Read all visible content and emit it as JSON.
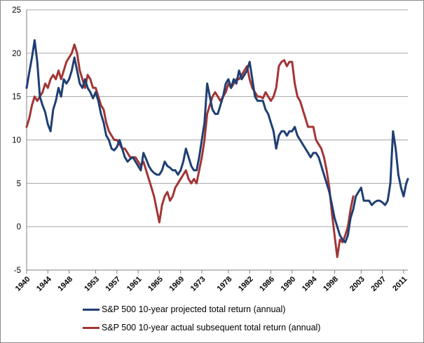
{
  "chart_data": {
    "type": "line",
    "title": "",
    "xlabel": "",
    "ylabel": "",
    "x_range": [
      1940,
      2011.8
    ],
    "ylim": [
      -5,
      25
    ],
    "y_ticks": [
      -5,
      0,
      5,
      10,
      15,
      20,
      25
    ],
    "x_tick_labels": [
      "1940",
      "1944",
      "1948",
      "1953",
      "1957",
      "1961",
      "1965",
      "1969",
      "1973",
      "1978",
      "1982",
      "1986",
      "1990",
      "1994",
      "1998",
      "2003",
      "2007",
      "2011"
    ],
    "x_tick_values": [
      1940,
      1944,
      1948,
      1953,
      1957,
      1961,
      1965,
      1969,
      1973,
      1978,
      1982,
      1986,
      1990,
      1994,
      1998,
      2003,
      2007,
      2011
    ],
    "grid": "horizontal",
    "legend_position": "bottom",
    "series": [
      {
        "name": "S&P 500 10-year projected total return (annual)",
        "color": "#1f3f73",
        "points": [
          [
            1940.0,
            16.0
          ],
          [
            1940.5,
            17.8
          ],
          [
            1941.0,
            19.5
          ],
          [
            1941.5,
            21.5
          ],
          [
            1942.0,
            19.0
          ],
          [
            1942.5,
            15.0
          ],
          [
            1943.0,
            14.0
          ],
          [
            1943.5,
            13.2
          ],
          [
            1944.0,
            11.8
          ],
          [
            1944.5,
            11.0
          ],
          [
            1945.0,
            13.5
          ],
          [
            1945.5,
            14.5
          ],
          [
            1946.0,
            16.0
          ],
          [
            1946.5,
            15.0
          ],
          [
            1947.0,
            17.0
          ],
          [
            1947.5,
            16.5
          ],
          [
            1948.0,
            17.0
          ],
          [
            1948.5,
            18.0
          ],
          [
            1949.0,
            19.5
          ],
          [
            1949.5,
            18.0
          ],
          [
            1950.0,
            16.5
          ],
          [
            1950.5,
            16.0
          ],
          [
            1951.0,
            17.0
          ],
          [
            1951.5,
            16.0
          ],
          [
            1952.0,
            15.5
          ],
          [
            1952.5,
            14.8
          ],
          [
            1953.0,
            15.5
          ],
          [
            1953.5,
            14.5
          ],
          [
            1954.0,
            13.0
          ],
          [
            1954.5,
            12.0
          ],
          [
            1955.0,
            10.5
          ],
          [
            1955.5,
            10.0
          ],
          [
            1956.0,
            9.0
          ],
          [
            1956.5,
            8.8
          ],
          [
            1957.0,
            9.2
          ],
          [
            1957.5,
            10.0
          ],
          [
            1958.0,
            9.0
          ],
          [
            1958.5,
            8.0
          ],
          [
            1959.0,
            7.5
          ],
          [
            1959.5,
            7.8
          ],
          [
            1960.0,
            8.0
          ],
          [
            1960.5,
            7.5
          ],
          [
            1961.0,
            7.0
          ],
          [
            1961.5,
            6.5
          ],
          [
            1962.0,
            8.5
          ],
          [
            1962.5,
            7.8
          ],
          [
            1963.0,
            7.0
          ],
          [
            1963.5,
            6.5
          ],
          [
            1964.0,
            6.2
          ],
          [
            1964.5,
            6.0
          ],
          [
            1965.0,
            6.0
          ],
          [
            1965.5,
            6.5
          ],
          [
            1966.0,
            7.5
          ],
          [
            1966.5,
            7.0
          ],
          [
            1967.0,
            6.8
          ],
          [
            1967.5,
            6.5
          ],
          [
            1968.0,
            6.5
          ],
          [
            1968.5,
            6.0
          ],
          [
            1969.0,
            6.5
          ],
          [
            1969.5,
            7.5
          ],
          [
            1970.0,
            9.0
          ],
          [
            1970.5,
            8.0
          ],
          [
            1971.0,
            7.0
          ],
          [
            1971.5,
            6.5
          ],
          [
            1972.0,
            6.5
          ],
          [
            1972.5,
            8.0
          ],
          [
            1973.0,
            10.0
          ],
          [
            1973.5,
            12.0
          ],
          [
            1974.0,
            16.5
          ],
          [
            1974.5,
            15.0
          ],
          [
            1975.0,
            13.5
          ],
          [
            1975.5,
            13.0
          ],
          [
            1976.0,
            13.0
          ],
          [
            1976.5,
            14.0
          ],
          [
            1977.0,
            15.0
          ],
          [
            1977.5,
            16.5
          ],
          [
            1978.0,
            17.0
          ],
          [
            1978.5,
            16.0
          ],
          [
            1979.0,
            17.0
          ],
          [
            1979.5,
            16.5
          ],
          [
            1980.0,
            18.0
          ],
          [
            1980.5,
            17.0
          ],
          [
            1981.0,
            17.5
          ],
          [
            1981.5,
            18.0
          ],
          [
            1982.0,
            19.0
          ],
          [
            1982.5,
            17.0
          ],
          [
            1983.0,
            15.0
          ],
          [
            1983.5,
            14.5
          ],
          [
            1984.0,
            14.5
          ],
          [
            1984.5,
            14.5
          ],
          [
            1985.0,
            13.5
          ],
          [
            1985.5,
            13.0
          ],
          [
            1986.0,
            12.0
          ],
          [
            1986.5,
            11.0
          ],
          [
            1987.0,
            9.0
          ],
          [
            1987.5,
            10.5
          ],
          [
            1988.0,
            11.0
          ],
          [
            1988.5,
            11.0
          ],
          [
            1989.0,
            10.5
          ],
          [
            1989.5,
            11.0
          ],
          [
            1990.0,
            11.0
          ],
          [
            1990.5,
            11.5
          ],
          [
            1991.0,
            10.5
          ],
          [
            1991.5,
            10.0
          ],
          [
            1992.0,
            9.5
          ],
          [
            1992.5,
            9.0
          ],
          [
            1993.0,
            8.5
          ],
          [
            1993.5,
            8.0
          ],
          [
            1994.0,
            8.5
          ],
          [
            1994.5,
            8.5
          ],
          [
            1995.0,
            8.0
          ],
          [
            1995.5,
            7.0
          ],
          [
            1996.0,
            6.0
          ],
          [
            1996.5,
            5.0
          ],
          [
            1997.0,
            4.0
          ],
          [
            1997.5,
            2.5
          ],
          [
            1998.0,
            1.0
          ],
          [
            1998.5,
            0.0
          ],
          [
            1999.0,
            -1.0
          ],
          [
            1999.5,
            -1.5
          ],
          [
            2000.0,
            -1.8
          ],
          [
            2000.5,
            -1.0
          ],
          [
            2001.0,
            1.0
          ],
          [
            2001.5,
            2.0
          ],
          [
            2002.0,
            3.5
          ],
          [
            2002.5,
            4.0
          ],
          [
            2003.0,
            4.5
          ],
          [
            2003.5,
            3.0
          ],
          [
            2004.0,
            3.0
          ],
          [
            2004.5,
            3.0
          ],
          [
            2005.0,
            2.5
          ],
          [
            2005.5,
            2.8
          ],
          [
            2006.0,
            3.0
          ],
          [
            2006.5,
            3.0
          ],
          [
            2007.0,
            2.8
          ],
          [
            2007.5,
            2.5
          ],
          [
            2008.0,
            3.0
          ],
          [
            2008.5,
            5.0
          ],
          [
            2009.0,
            11.0
          ],
          [
            2009.5,
            9.0
          ],
          [
            2010.0,
            6.0
          ],
          [
            2010.5,
            4.5
          ],
          [
            2011.0,
            3.5
          ],
          [
            2011.5,
            5.0
          ],
          [
            2011.8,
            5.5
          ]
        ]
      },
      {
        "name": "S&P 500 10-year actual subsequent total return (annual)",
        "color": "#a33535",
        "points": [
          [
            1940.0,
            11.5
          ],
          [
            1940.5,
            12.5
          ],
          [
            1941.0,
            14.0
          ],
          [
            1941.5,
            15.0
          ],
          [
            1942.0,
            14.5
          ],
          [
            1942.5,
            15.0
          ],
          [
            1943.0,
            15.5
          ],
          [
            1943.5,
            16.5
          ],
          [
            1944.0,
            16.0
          ],
          [
            1944.5,
            17.0
          ],
          [
            1945.0,
            17.5
          ],
          [
            1945.5,
            17.0
          ],
          [
            1946.0,
            18.0
          ],
          [
            1946.5,
            17.0
          ],
          [
            1947.0,
            18.0
          ],
          [
            1947.5,
            19.0
          ],
          [
            1948.0,
            19.5
          ],
          [
            1948.5,
            20.0
          ],
          [
            1949.0,
            21.0
          ],
          [
            1949.5,
            20.0
          ],
          [
            1950.0,
            18.0
          ],
          [
            1950.5,
            17.0
          ],
          [
            1951.0,
            16.0
          ],
          [
            1951.5,
            17.5
          ],
          [
            1952.0,
            17.0
          ],
          [
            1952.5,
            16.0
          ],
          [
            1953.0,
            16.0
          ],
          [
            1953.5,
            15.0
          ],
          [
            1954.0,
            14.0
          ],
          [
            1954.5,
            13.5
          ],
          [
            1955.0,
            12.0
          ],
          [
            1955.5,
            11.0
          ],
          [
            1956.0,
            10.5
          ],
          [
            1956.5,
            10.0
          ],
          [
            1957.0,
            10.0
          ],
          [
            1957.5,
            9.5
          ],
          [
            1958.0,
            9.0
          ],
          [
            1958.5,
            9.0
          ],
          [
            1959.0,
            8.5
          ],
          [
            1959.5,
            8.0
          ],
          [
            1960.0,
            8.0
          ],
          [
            1960.5,
            8.0
          ],
          [
            1961.0,
            7.5
          ],
          [
            1961.5,
            7.0
          ],
          [
            1962.0,
            7.5
          ],
          [
            1962.5,
            6.5
          ],
          [
            1963.0,
            5.5
          ],
          [
            1963.5,
            4.5
          ],
          [
            1964.0,
            3.5
          ],
          [
            1964.5,
            2.0
          ],
          [
            1965.0,
            0.5
          ],
          [
            1965.5,
            2.5
          ],
          [
            1966.0,
            3.5
          ],
          [
            1966.5,
            4.0
          ],
          [
            1967.0,
            3.0
          ],
          [
            1967.5,
            3.5
          ],
          [
            1968.0,
            4.5
          ],
          [
            1968.5,
            5.0
          ],
          [
            1969.0,
            5.5
          ],
          [
            1969.5,
            6.0
          ],
          [
            1970.0,
            6.5
          ],
          [
            1970.5,
            5.5
          ],
          [
            1971.0,
            5.0
          ],
          [
            1971.5,
            5.5
          ],
          [
            1972.0,
            5.0
          ],
          [
            1972.5,
            6.5
          ],
          [
            1973.0,
            8.0
          ],
          [
            1973.5,
            10.0
          ],
          [
            1974.0,
            13.0
          ],
          [
            1974.5,
            14.0
          ],
          [
            1975.0,
            15.0
          ],
          [
            1975.5,
            15.5
          ],
          [
            1976.0,
            15.0
          ],
          [
            1976.5,
            14.5
          ],
          [
            1977.0,
            15.0
          ],
          [
            1977.5,
            15.5
          ],
          [
            1978.0,
            16.5
          ],
          [
            1978.5,
            16.0
          ],
          [
            1979.0,
            16.5
          ],
          [
            1979.5,
            17.0
          ],
          [
            1980.0,
            17.0
          ],
          [
            1980.5,
            17.5
          ],
          [
            1981.0,
            18.0
          ],
          [
            1981.5,
            18.5
          ],
          [
            1982.0,
            17.0
          ],
          [
            1982.5,
            16.0
          ],
          [
            1983.0,
            15.5
          ],
          [
            1983.5,
            15.0
          ],
          [
            1984.0,
            15.0
          ],
          [
            1984.5,
            14.8
          ],
          [
            1985.0,
            15.5
          ],
          [
            1985.5,
            15.0
          ],
          [
            1986.0,
            14.5
          ],
          [
            1986.5,
            15.0
          ],
          [
            1987.0,
            16.0
          ],
          [
            1987.5,
            18.5
          ],
          [
            1988.0,
            19.0
          ],
          [
            1988.5,
            19.2
          ],
          [
            1989.0,
            18.5
          ],
          [
            1989.5,
            19.0
          ],
          [
            1990.0,
            19.0
          ],
          [
            1990.5,
            16.5
          ],
          [
            1991.0,
            15.0
          ],
          [
            1991.5,
            14.5
          ],
          [
            1992.0,
            13.5
          ],
          [
            1992.5,
            12.5
          ],
          [
            1993.0,
            11.5
          ],
          [
            1993.5,
            11.5
          ],
          [
            1994.0,
            11.5
          ],
          [
            1994.5,
            10.0
          ],
          [
            1995.0,
            9.5
          ],
          [
            1995.5,
            9.0
          ],
          [
            1996.0,
            8.0
          ],
          [
            1996.5,
            6.5
          ],
          [
            1997.0,
            4.5
          ],
          [
            1997.5,
            1.5
          ],
          [
            1998.0,
            -1.0
          ],
          [
            1998.5,
            -3.5
          ],
          [
            1999.0,
            -1.5
          ],
          [
            1999.5,
            -1.8
          ],
          [
            2000.0,
            -1.0
          ],
          [
            2000.5,
            0.0
          ],
          [
            2001.0,
            2.0
          ],
          [
            2001.5,
            3.5
          ]
        ]
      }
    ]
  }
}
